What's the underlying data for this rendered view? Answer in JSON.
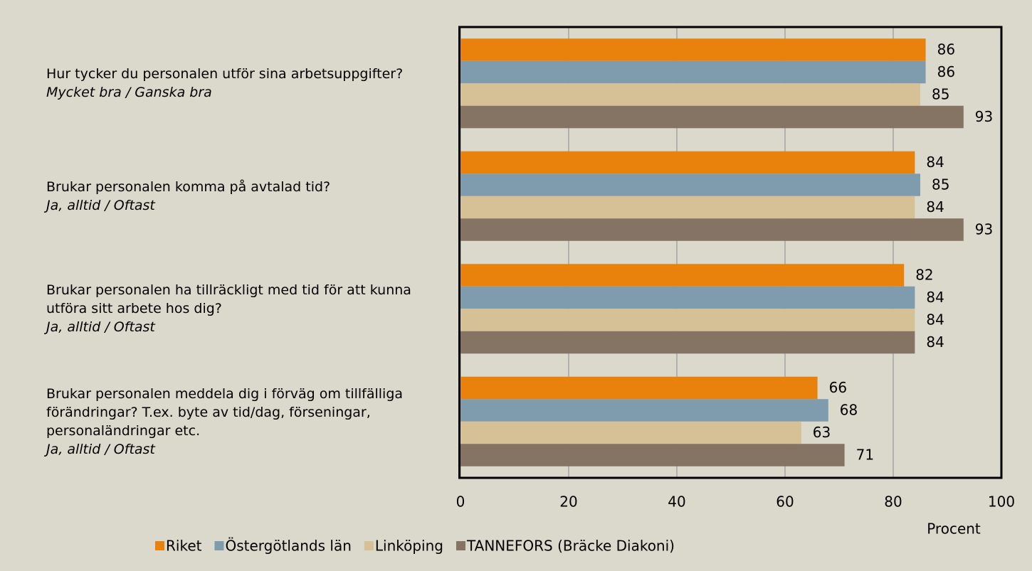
{
  "chart_data": {
    "type": "bar",
    "orientation": "horizontal",
    "categories": [
      "Hur tycker du personalen utför sina arbetsuppgifter?",
      "Brukar personalen komma på avtalad tid?",
      "Brukar personalen ha tillräckligt med tid för att kunna utföra sitt arbete hos dig?",
      "Brukar personalen meddela dig i förväg om tillfälliga förändringar? T.ex. byte av tid/dag, förseningar, personaländringar etc."
    ],
    "category_answers": [
      "Mycket bra / Ganska bra",
      "Ja, alltid / Oftast",
      "Ja, alltid / Oftast",
      "Ja, alltid / Oftast"
    ],
    "series": [
      {
        "name": "Riket",
        "color": "#e8820c",
        "values": [
          86,
          84,
          82,
          66
        ]
      },
      {
        "name": "Östergötlands län",
        "color": "#7f9cae",
        "values": [
          86,
          85,
          84,
          68
        ]
      },
      {
        "name": "Linköping",
        "color": "#d5c195",
        "values": [
          85,
          84,
          84,
          63
        ]
      },
      {
        "name": "TANNEFORS (Bräcke Diakoni)",
        "color": "#857363",
        "values": [
          93,
          93,
          84,
          71
        ]
      }
    ],
    "xlabel": "Procent",
    "xlim": [
      0,
      100
    ],
    "xticks": [
      0,
      20,
      40,
      60,
      80,
      100
    ],
    "grid": true,
    "legend": "bottom"
  }
}
